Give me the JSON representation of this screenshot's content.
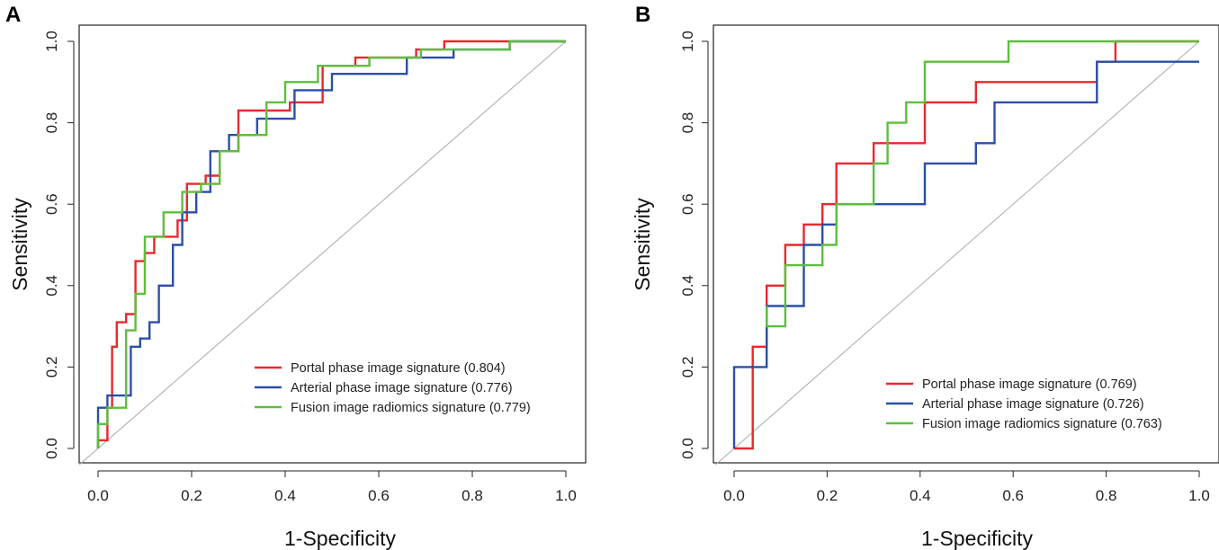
{
  "chart_data": [
    {
      "panel": "A",
      "type": "line",
      "subtype": "roc",
      "xlabel": "1-Specificity",
      "ylabel": "Sensitivity",
      "xlim": [
        0,
        1
      ],
      "ylim": [
        0,
        1
      ],
      "xticks": [
        "0.0",
        "0.2",
        "0.4",
        "0.6",
        "0.8",
        "1.0"
      ],
      "yticks": [
        "0.0",
        "0.2",
        "0.4",
        "0.6",
        "0.8",
        "1.0"
      ],
      "diagonal_reference": true,
      "legend_position": "bottom-right",
      "series": [
        {
          "name": "Portal phase image signature (0.804)",
          "color": "#e8292c",
          "x": [
            0.0,
            0.0,
            0.02,
            0.02,
            0.03,
            0.03,
            0.04,
            0.04,
            0.06,
            0.06,
            0.08,
            0.08,
            0.1,
            0.1,
            0.12,
            0.12,
            0.17,
            0.17,
            0.19,
            0.19,
            0.23,
            0.23,
            0.26,
            0.26,
            0.3,
            0.3,
            0.41,
            0.41,
            0.48,
            0.48,
            0.55,
            0.55,
            0.68,
            0.68,
            0.74,
            0.74,
            1.0
          ],
          "y": [
            0.0,
            0.02,
            0.02,
            0.1,
            0.1,
            0.25,
            0.25,
            0.31,
            0.31,
            0.33,
            0.33,
            0.46,
            0.46,
            0.48,
            0.48,
            0.52,
            0.52,
            0.56,
            0.56,
            0.65,
            0.65,
            0.67,
            0.67,
            0.73,
            0.73,
            0.83,
            0.83,
            0.85,
            0.85,
            0.94,
            0.94,
            0.96,
            0.96,
            0.98,
            0.98,
            1.0,
            1.0
          ]
        },
        {
          "name": "Arterial phase image signature (0.776)",
          "color": "#2b4fa8",
          "x": [
            0.0,
            0.0,
            0.02,
            0.02,
            0.07,
            0.07,
            0.09,
            0.09,
            0.11,
            0.11,
            0.13,
            0.13,
            0.16,
            0.16,
            0.18,
            0.18,
            0.21,
            0.21,
            0.24,
            0.24,
            0.28,
            0.28,
            0.34,
            0.34,
            0.42,
            0.42,
            0.5,
            0.5,
            0.66,
            0.66,
            0.76,
            0.76,
            0.88,
            0.88,
            1.0
          ],
          "y": [
            0.0,
            0.1,
            0.1,
            0.13,
            0.13,
            0.25,
            0.25,
            0.27,
            0.27,
            0.31,
            0.31,
            0.4,
            0.4,
            0.5,
            0.5,
            0.58,
            0.58,
            0.63,
            0.63,
            0.73,
            0.73,
            0.77,
            0.77,
            0.81,
            0.81,
            0.88,
            0.88,
            0.92,
            0.92,
            0.96,
            0.96,
            0.98,
            0.98,
            1.0,
            1.0
          ]
        },
        {
          "name": "Fusion image radiomics signature (0.779)",
          "color": "#5cbf3c",
          "x": [
            0.0,
            0.0,
            0.02,
            0.02,
            0.06,
            0.06,
            0.08,
            0.08,
            0.1,
            0.1,
            0.14,
            0.14,
            0.18,
            0.18,
            0.22,
            0.22,
            0.26,
            0.26,
            0.3,
            0.3,
            0.36,
            0.36,
            0.4,
            0.4,
            0.47,
            0.47,
            0.58,
            0.58,
            0.69,
            0.69,
            0.88,
            0.88,
            1.0
          ],
          "y": [
            0.0,
            0.06,
            0.06,
            0.1,
            0.1,
            0.29,
            0.29,
            0.38,
            0.38,
            0.52,
            0.52,
            0.58,
            0.58,
            0.63,
            0.63,
            0.65,
            0.65,
            0.73,
            0.73,
            0.77,
            0.77,
            0.85,
            0.85,
            0.9,
            0.9,
            0.94,
            0.94,
            0.96,
            0.96,
            0.98,
            0.98,
            1.0,
            1.0
          ]
        }
      ]
    },
    {
      "panel": "B",
      "type": "line",
      "subtype": "roc",
      "xlabel": "1-Specificity",
      "ylabel": "Sensitivity",
      "xlim": [
        0,
        1
      ],
      "ylim": [
        0,
        1
      ],
      "xticks": [
        "0.0",
        "0.2",
        "0.4",
        "0.6",
        "0.8",
        "1.0"
      ],
      "yticks": [
        "0.0",
        "0.2",
        "0.4",
        "0.6",
        "0.8",
        "1.0"
      ],
      "diagonal_reference": true,
      "legend_position": "bottom-right",
      "series": [
        {
          "name": "Portal phase image signature (0.769)",
          "color": "#e8292c",
          "x": [
            0.0,
            0.04,
            0.04,
            0.07,
            0.07,
            0.11,
            0.11,
            0.15,
            0.15,
            0.19,
            0.19,
            0.22,
            0.22,
            0.3,
            0.3,
            0.41,
            0.41,
            0.52,
            0.52,
            0.78,
            0.78,
            0.82,
            0.82,
            1.0
          ],
          "y": [
            0.0,
            0.0,
            0.25,
            0.25,
            0.4,
            0.4,
            0.5,
            0.5,
            0.55,
            0.55,
            0.6,
            0.6,
            0.7,
            0.7,
            0.75,
            0.75,
            0.85,
            0.85,
            0.9,
            0.9,
            0.95,
            0.95,
            1.0,
            1.0
          ]
        },
        {
          "name": "Arterial phase image signature (0.726)",
          "color": "#2b4fa8",
          "x": [
            0.0,
            0.0,
            0.07,
            0.07,
            0.15,
            0.15,
            0.19,
            0.19,
            0.22,
            0.22,
            0.41,
            0.41,
            0.52,
            0.52,
            0.56,
            0.56,
            0.78,
            0.78,
            1.0
          ],
          "y": [
            0.0,
            0.2,
            0.2,
            0.35,
            0.35,
            0.5,
            0.5,
            0.55,
            0.55,
            0.6,
            0.6,
            0.7,
            0.7,
            0.75,
            0.75,
            0.85,
            0.85,
            0.95,
            0.95
          ]
        },
        {
          "name": "Fusion image radiomics signature (0.763)",
          "color": "#5cbf3c",
          "x": [
            0.07,
            0.07,
            0.11,
            0.11,
            0.19,
            0.19,
            0.22,
            0.22,
            0.3,
            0.3,
            0.33,
            0.33,
            0.37,
            0.37,
            0.41,
            0.41,
            0.59,
            0.59,
            0.7,
            0.7,
            0.78,
            0.78,
            1.0
          ],
          "y": [
            0.35,
            0.3,
            0.3,
            0.45,
            0.45,
            0.5,
            0.5,
            0.6,
            0.6,
            0.7,
            0.7,
            0.8,
            0.8,
            0.85,
            0.85,
            0.95,
            0.95,
            1.0,
            1.0,
            1.0,
            1.0,
            1.0,
            1.0
          ]
        }
      ]
    }
  ]
}
